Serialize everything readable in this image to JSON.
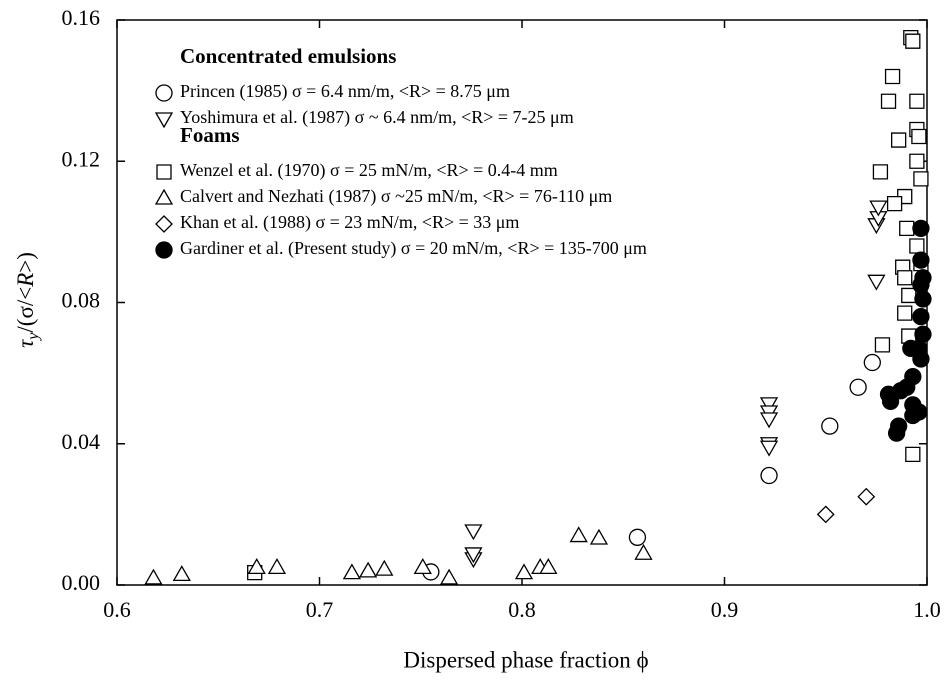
{
  "chart_data": {
    "type": "scatter",
    "x_label": "Dispersed phase fraction ϕ",
    "y_label": [
      "τ",
      "y",
      "/(σ/<",
      "R",
      ">)"
    ],
    "legend_headings": [
      "Concentrated emulsions",
      "Foams"
    ],
    "xlim": [
      0.6,
      1.0
    ],
    "ylim": [
      0,
      0.16
    ],
    "xticks": [
      0.6,
      0.7,
      0.8,
      0.9,
      {
        "value": 1,
        "label": "1.0"
      }
    ],
    "yticks": [
      {
        "value": 0,
        "label": "0.00"
      },
      0.04,
      0.08,
      0.12,
      0.16
    ],
    "grid": false,
    "series": [
      {
        "name": "Princen (1985) σ = 6.4 nm/m, <R> = 8.75 μm",
        "marker": "circle",
        "color": "#000000",
        "x": [
          0.922,
          0.952,
          0.966,
          0.973,
          0.857,
          0.755
        ],
        "values": [
          0.031,
          0.045,
          0.056,
          0.063,
          0.0135,
          0.0037
        ]
      },
      {
        "name": "Yoshimura et al. (1987) σ ~ 6.4 nm/m, <R> = 7-25 μm",
        "marker": "triangle-down",
        "color": "#000000",
        "x": [
          0.922,
          0.922,
          0.922,
          0.922,
          0.922,
          0.776,
          0.776,
          0.776,
          0.975,
          0.975,
          0.976,
          0.976
        ],
        "values": [
          0.0513,
          0.049,
          0.047,
          0.04,
          0.039,
          0.0074,
          0.0088,
          0.0153,
          0.086,
          0.102,
          0.104,
          0.107
        ]
      },
      {
        "name": "Wenzel et al. (1970) σ = 25 mN/m, <R> = 0.4-4 mm",
        "marker": "square",
        "color": "#000000",
        "x": [
          0.977,
          0.981,
          0.983,
          0.992,
          0.993,
          0.995,
          0.995,
          0.996,
          0.986,
          0.995,
          0.997,
          0.989,
          0.984,
          0.99,
          0.995,
          0.997,
          0.988,
          0.989,
          0.991,
          0.989,
          0.991,
          0.978,
          0.993,
          0.668
        ],
        "values": [
          0.117,
          0.137,
          0.144,
          0.155,
          0.154,
          0.137,
          0.129,
          0.127,
          0.126,
          0.12,
          0.115,
          0.11,
          0.108,
          0.101,
          0.096,
          0.091,
          0.09,
          0.087,
          0.082,
          0.077,
          0.0705,
          0.068,
          0.037,
          0.0035
        ]
      },
      {
        "name": "Calvert and Nezhati (1987) σ ~25 mN/m, <R> = 76-110 μm",
        "marker": "triangle-up",
        "color": "#000000",
        "x": [
          0.618,
          0.632,
          0.669,
          0.679,
          0.716,
          0.724,
          0.732,
          0.751,
          0.764,
          0.801,
          0.809,
          0.813,
          0.828,
          0.838,
          0.86
        ],
        "values": [
          0.002,
          0.003,
          0.005,
          0.005,
          0.0035,
          0.004,
          0.0045,
          0.005,
          0.002,
          0.0035,
          0.005,
          0.005,
          0.014,
          0.0133,
          0.009
        ]
      },
      {
        "name": "Khan et al. (1988) σ = 23 mN/m, <R> = 33 μm",
        "marker": "diamond",
        "color": "#000000",
        "x": [
          0.95,
          0.97
        ],
        "values": [
          0.02,
          0.025
        ]
      },
      {
        "name": "Gardiner et al. (Present study) σ = 20 mN/m, <R> = 135-700 μm",
        "marker": "filled-circle",
        "color": "#000000",
        "x": [
          0.997,
          0.997,
          0.998,
          0.997,
          0.998,
          0.997,
          0.998,
          0.996,
          0.997,
          0.992,
          0.993,
          0.99,
          0.987,
          0.981,
          0.982,
          0.993,
          0.996,
          0.993,
          0.986,
          0.985
        ],
        "values": [
          0.101,
          0.092,
          0.087,
          0.085,
          0.081,
          0.076,
          0.071,
          0.067,
          0.064,
          0.067,
          0.059,
          0.056,
          0.055,
          0.054,
          0.052,
          0.051,
          0.049,
          0.048,
          0.045,
          0.043
        ]
      }
    ]
  }
}
